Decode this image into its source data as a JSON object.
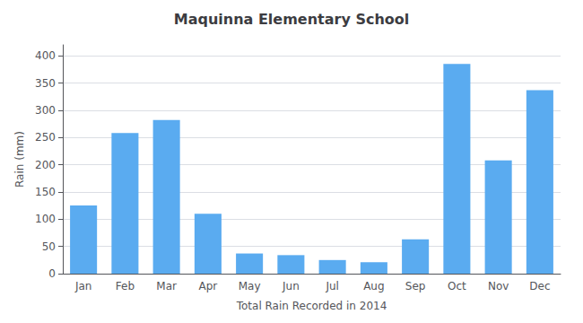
{
  "chart_data": {
    "type": "bar",
    "title": "Maquinna Elementary School",
    "xlabel": "Total Rain Recorded in 2014",
    "ylabel": "Rain (mm)",
    "categories": [
      "Jan",
      "Feb",
      "Mar",
      "Apr",
      "May",
      "Jun",
      "Jul",
      "Aug",
      "Sep",
      "Oct",
      "Nov",
      "Dec"
    ],
    "values": [
      125,
      258,
      282,
      110,
      37,
      34,
      25,
      21,
      63,
      385,
      208,
      337
    ],
    "color": "#5aabf0",
    "ylim": [
      0,
      420
    ],
    "yticks": [
      0,
      50,
      100,
      150,
      200,
      250,
      300,
      350,
      400
    ],
    "grid": true
  }
}
